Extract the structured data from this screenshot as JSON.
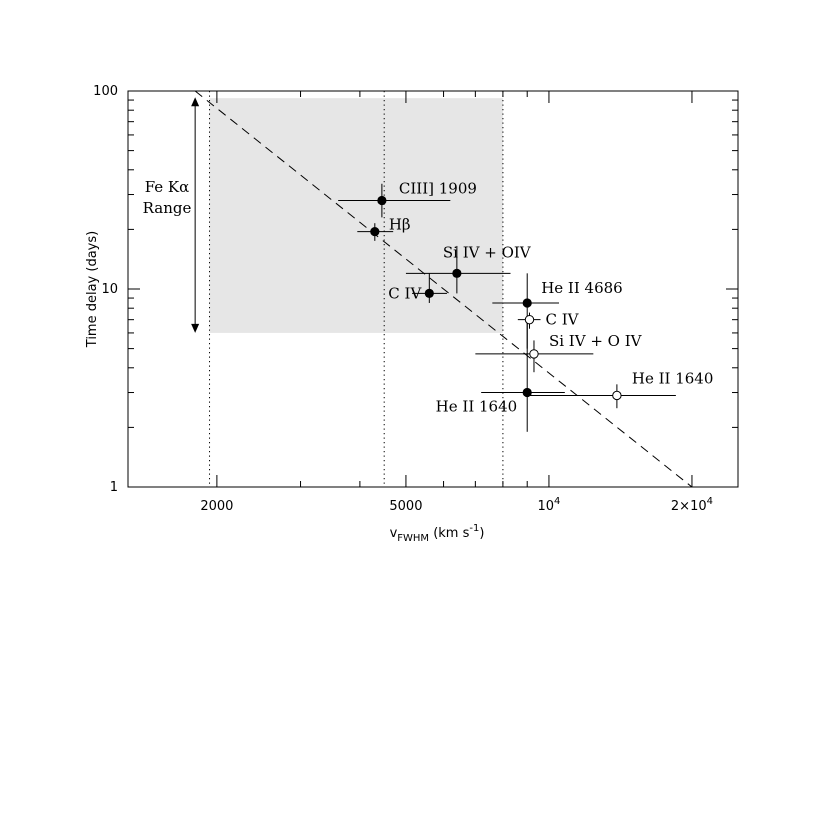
{
  "chart_data": {
    "type": "scatter",
    "xlabel": "v_FWHM (km s^-1)",
    "ylabel": "Time delay (days)",
    "xscale": "log",
    "yscale": "log",
    "xlim": [
      1300,
      25000
    ],
    "ylim": [
      1,
      100
    ],
    "x_ticks": [
      {
        "value": 2000,
        "label": "2000"
      },
      {
        "value": 5000,
        "label": "5000"
      },
      {
        "value": 10000,
        "label": "10^4"
      },
      {
        "value": 20000,
        "label": "2×10^4"
      }
    ],
    "y_ticks": [
      {
        "value": 1,
        "label": "1"
      },
      {
        "value": 10,
        "label": "10"
      },
      {
        "value": 100,
        "label": "100"
      }
    ],
    "fe_range": {
      "label_line1": "Fe Kα",
      "label_line2": "Range",
      "x_min": 1930,
      "x_max": 8000,
      "y_min": 6,
      "y_max": 92,
      "fill": "#e6e6e6"
    },
    "arrow_range": {
      "x": 1800,
      "y_min": 6,
      "y_max": 93
    },
    "vertical_dotted_lines": [
      1930,
      4500,
      8000
    ],
    "fit_line": {
      "x0": 1800,
      "y0": 100,
      "x1": 20000,
      "y1": 1
    },
    "series": [
      {
        "marker": "filled",
        "points": [
          {
            "label": "CIII] 1909",
            "x": 4450,
            "y": 28,
            "xerr": [
              3600,
              6200
            ],
            "yerr": [
              23,
              34
            ]
          },
          {
            "label": "Hβ",
            "x": 4300,
            "y": 19.5,
            "xerr": [
              3950,
              4700
            ],
            "yerr": [
              17.5,
              21.5
            ]
          },
          {
            "label": "Si IV + OIV",
            "x": 6400,
            "y": 12,
            "xerr": [
              5000,
              8300
            ],
            "yerr": [
              9.5,
              16.5
            ]
          },
          {
            "label": "C IV",
            "x": 5600,
            "y": 9.5,
            "xerr": [
              5150,
              6100
            ],
            "yerr": [
              8.5,
              12
            ]
          },
          {
            "label": "He II 4686",
            "x": 9000,
            "y": 8.5,
            "xerr": [
              7600,
              10500
            ],
            "yerr": [
              5,
              12
            ]
          },
          {
            "label": "He II 1640",
            "x": 9000,
            "y": 3.0,
            "xerr": [
              7200,
              10800
            ],
            "yerr": [
              1.9,
              7
            ]
          }
        ]
      },
      {
        "marker": "open",
        "points": [
          {
            "label": "C IV",
            "x": 9100,
            "y": 7.0,
            "xerr": [
              8600,
              9600
            ],
            "yerr": [
              6.3,
              7.6
            ]
          },
          {
            "label": "Si IV + O IV",
            "x": 9300,
            "y": 4.7,
            "xerr": [
              7000,
              12400
            ],
            "yerr": [
              3.8,
              5.5
            ]
          },
          {
            "label": "He II 1640",
            "x": 13900,
            "y": 2.9,
            "xerr": [
              9000,
              18500
            ],
            "yerr": [
              2.5,
              3.3
            ]
          }
        ]
      }
    ]
  }
}
